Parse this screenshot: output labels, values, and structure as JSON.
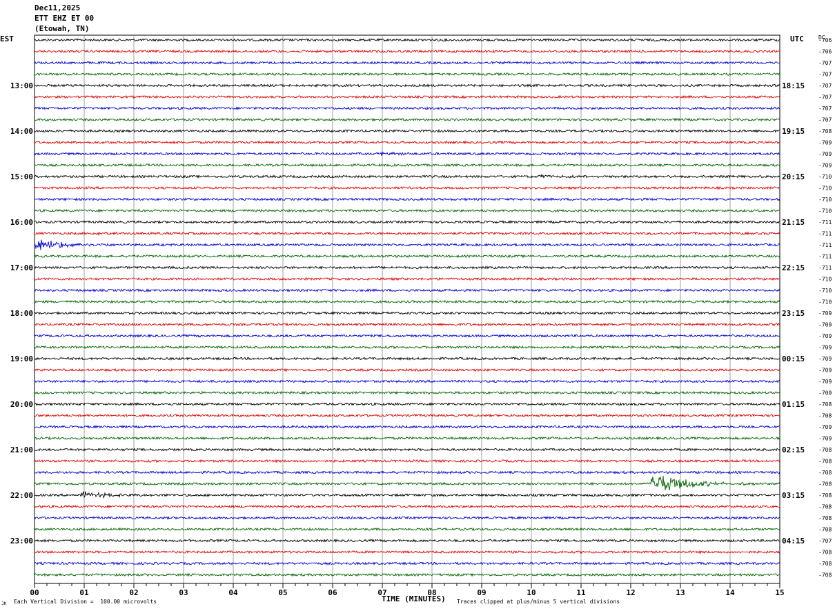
{
  "header": {
    "date": "Dec11,2025",
    "station": "ETT EHZ ET 00",
    "location": "(Etowah, TN)"
  },
  "left_timezone": "EST",
  "right_timezone": "UTC",
  "dc_header": "DC",
  "footer": {
    "scale_note": "Each Vertical Division =  100.00 microvolts",
    "clip_note": "Traces clipped at plus/minus 5 vertical divisions",
    "corner_mark": "JK"
  },
  "chart_data": {
    "type": "line",
    "xlabel": "TIME (MINUTES)",
    "xlim": [
      0,
      15
    ],
    "x_ticks": [
      "00",
      "01",
      "02",
      "03",
      "04",
      "05",
      "06",
      "07",
      "08",
      "09",
      "10",
      "11",
      "12",
      "13",
      "14",
      "15"
    ],
    "trace_count": 48,
    "trace_colors": [
      "#000000",
      "#e00000",
      "#0000d0",
      "#006400"
    ],
    "left_hour_labels": [
      "13:00",
      "14:00",
      "15:00",
      "16:00",
      "17:00",
      "18:00",
      "19:00",
      "20:00",
      "21:00",
      "22:00",
      "23:00"
    ],
    "right_hour_labels": [
      "18:15",
      "19:15",
      "20:15",
      "21:15",
      "22:15",
      "23:15",
      "00:15",
      "01:15",
      "02:15",
      "03:15",
      "04:15"
    ],
    "dc_offsets": [
      "-706",
      "-706",
      "-707",
      "-707",
      "-707",
      "-707",
      "-707",
      "-707",
      "-708",
      "-709",
      "-709",
      "-709",
      "-710",
      "-710",
      "-710",
      "-710",
      "-711",
      "-711",
      "-711",
      "-711",
      "-711",
      "-710",
      "-710",
      "-710",
      "-709",
      "-709",
      "-709",
      "-709",
      "-709",
      "-709",
      "-709",
      "-709",
      "-708",
      "-708",
      "-709",
      "-709",
      "-708",
      "-708",
      "-708",
      "-708",
      "-708",
      "-708",
      "-708",
      "-708",
      "-707",
      "-708",
      "-708",
      "-708"
    ],
    "events": [
      {
        "trace": 18,
        "start_min": 0.0,
        "amplitude_divisions": 2.5
      },
      {
        "trace": 40,
        "start_min": 0.9,
        "amplitude_divisions": 1.5
      },
      {
        "trace": 39,
        "start_min": 12.4,
        "amplitude_divisions": 5.0
      },
      {
        "trace": 17,
        "start_min": 1.2,
        "amplitude_divisions": 0.8
      },
      {
        "trace": 10,
        "start_min": 6.9,
        "amplitude_divisions": 0.6
      },
      {
        "trace": 12,
        "start_min": 10.1,
        "amplitude_divisions": 0.6
      }
    ]
  }
}
